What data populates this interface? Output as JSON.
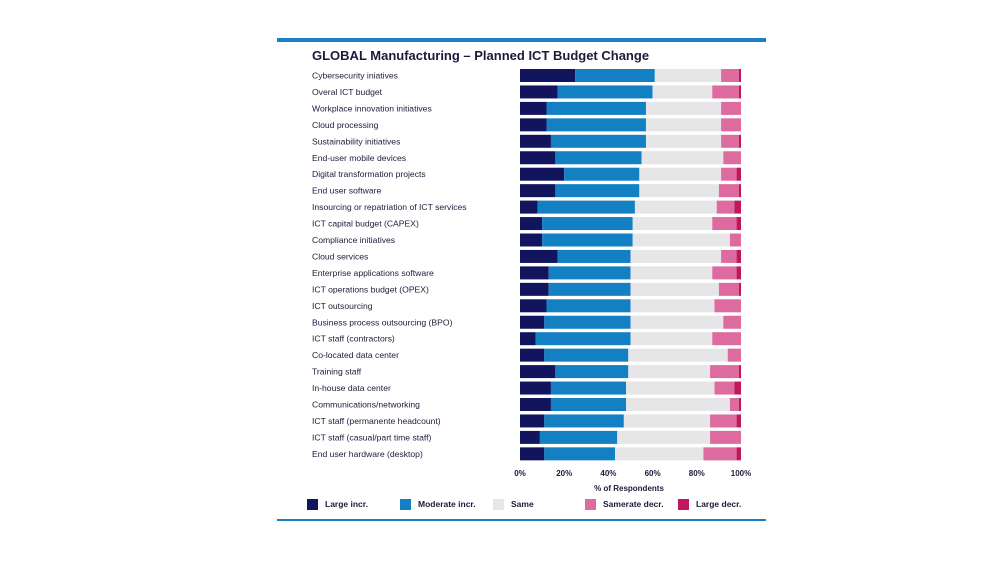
{
  "chart_data": {
    "type": "bar",
    "orientation": "horizontal",
    "stacked": true,
    "title": "GLOBAL Manufacturing – Planned ICT Budget Change",
    "xlabel": "% of Respondents",
    "xlim": [
      0,
      100
    ],
    "xticks": [
      "0%",
      "20%",
      "40%",
      "60%",
      "80%",
      "100%"
    ],
    "grid": false,
    "legend_position": "bottom",
    "categories": [
      "Cybersecurity iniatives",
      "Overal ICT budget",
      "Workplace innovation initiatives",
      "Cloud processing",
      "Sustainability initiatives",
      "End-user mobile devices",
      "Digital transformation projects",
      "End user software",
      "Insourcing or repatriation of ICT services",
      "ICT capital budget (CAPEX)",
      "Compliance initiatives",
      "Cloud services",
      "Enterprise applications software",
      "ICT operations budget (OPEX)",
      "ICT outsourcing",
      "Business process outsourcing (BPO)",
      "ICT staff (contractors)",
      "Co-located data center",
      "Training staff",
      "In-house data center",
      "Communications/networking",
      "ICT staff (permanente headcount)",
      "ICT staff (casual/part time staff)",
      "End user hardware (desktop)"
    ],
    "series": [
      {
        "name": "Large incr.",
        "color": "#13145e",
        "values": [
          25,
          17,
          12,
          12,
          14,
          16,
          20,
          16,
          8,
          10,
          10,
          17,
          13,
          13,
          12,
          11,
          7,
          11,
          16,
          14,
          14,
          11,
          9,
          11
        ]
      },
      {
        "name": "Moderate incr.",
        "color": "#1480c4",
        "values": [
          36,
          43,
          45,
          45,
          43,
          39,
          34,
          38,
          44,
          41,
          41,
          33,
          37,
          37,
          38,
          39,
          43,
          38,
          33,
          34,
          34,
          36,
          35,
          32
        ]
      },
      {
        "name": "Same",
        "color": "#e6e5e7",
        "values": [
          30,
          27,
          34,
          34,
          34,
          37,
          37,
          36,
          37,
          36,
          44,
          41,
          37,
          40,
          38,
          42,
          37,
          45,
          37,
          40,
          47,
          39,
          42,
          40
        ]
      },
      {
        "name": "Samerate decr.",
        "color": "#dd6ba0",
        "values": [
          8,
          12,
          9,
          9,
          8,
          8,
          7,
          9,
          8,
          11,
          5,
          7,
          11,
          9,
          12,
          8,
          13,
          6,
          13,
          9,
          4,
          12,
          14,
          15
        ]
      },
      {
        "name": "Large decr.",
        "color": "#c1175f",
        "values": [
          1,
          1,
          0,
          0,
          1,
          0,
          2,
          1,
          3,
          2,
          0,
          2,
          2,
          1,
          0,
          0,
          0,
          0,
          1,
          3,
          1,
          2,
          0,
          2
        ]
      }
    ]
  }
}
